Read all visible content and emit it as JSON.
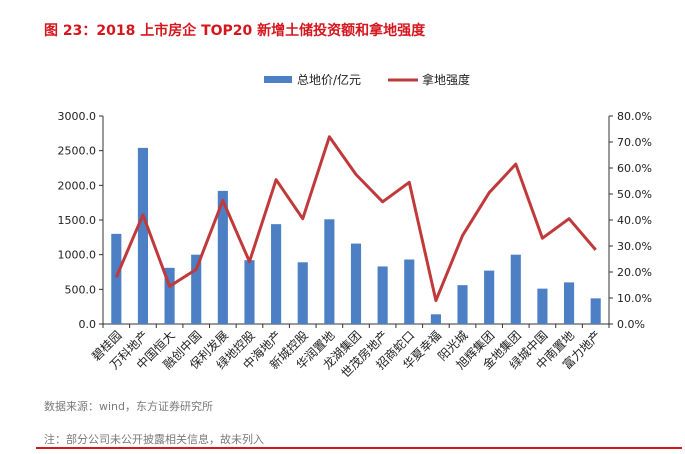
{
  "figure": {
    "title": "图 23：2018 上市房企 TOP20 新增土储投资额和拿地强度",
    "source": "数据来源：wind，东方证券研究所",
    "note": "注：部分公司未公开披露相关信息，故未列入"
  },
  "colors": {
    "bar": "#4c7fc3",
    "line": "#c0393b",
    "accent": "#d5161d"
  },
  "chart_data": {
    "type": "bar",
    "title": "",
    "categories": [
      "碧桂园",
      "万科地产",
      "中国恒大",
      "融创中国",
      "保利发展",
      "绿地控股",
      "中海地产",
      "新城控股",
      "华润置地",
      "龙湖集团",
      "世茂房地产",
      "招商蛇口",
      "华夏幸福",
      "阳光城",
      "旭辉集团",
      "金地集团",
      "绿城中国",
      "中南置地",
      "富力地产"
    ],
    "series": [
      {
        "name": "总地价/亿元",
        "type": "bar",
        "axis": "left",
        "values": [
          1300,
          2540,
          810,
          1000,
          1920,
          920,
          1440,
          890,
          1510,
          1160,
          830,
          930,
          140,
          560,
          770,
          1000,
          510,
          600,
          370
        ]
      },
      {
        "name": "拿地强度",
        "type": "line",
        "axis": "right",
        "values": [
          18.0,
          42.0,
          14.5,
          21.0,
          47.5,
          24.0,
          55.5,
          40.5,
          72.0,
          57.5,
          47.0,
          54.5,
          9.0,
          34.0,
          50.5,
          61.5,
          33.0,
          40.5,
          28.5
        ]
      }
    ],
    "y_left": {
      "min": 0,
      "max": 3000,
      "ticks": [
        "0.0",
        "500.0",
        "1000.0",
        "1500.0",
        "2000.0",
        "2500.0",
        "3000.0"
      ]
    },
    "y_right": {
      "min": 0,
      "max": 80,
      "ticks": [
        "0.0%",
        "10.0%",
        "20.0%",
        "30.0%",
        "40.0%",
        "50.0%",
        "60.0%",
        "70.0%",
        "80.0%"
      ]
    },
    "legend": {
      "position": "top",
      "entries": [
        "总地价/亿元",
        "拿地强度"
      ]
    },
    "grid": false
  }
}
